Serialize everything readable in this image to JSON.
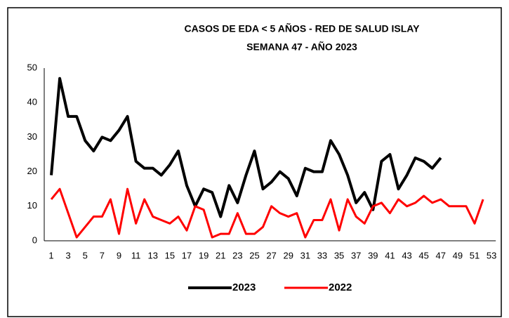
{
  "chart_data": {
    "type": "line",
    "title": "CASOS DE EDA < 5 AÑOS - RED DE SALUD ISLAY",
    "subtitle": "SEMANA  47 -  AÑO 2023",
    "categories": [
      "1",
      null,
      "3",
      null,
      "5",
      null,
      "7",
      null,
      "9",
      null,
      "11",
      null,
      "13",
      null,
      "15",
      null,
      "17",
      null,
      "19",
      null,
      "21",
      null,
      "23",
      null,
      "25",
      null,
      "27",
      null,
      "29",
      null,
      "31",
      null,
      "33",
      null,
      "35",
      null,
      "37",
      null,
      "39",
      null,
      "41",
      null,
      "43",
      null,
      "45",
      null,
      "47",
      null,
      "49",
      null,
      "51",
      null,
      "53"
    ],
    "series": [
      {
        "name": "2023",
        "color": "#000000",
        "values": [
          19,
          47,
          36,
          36,
          29,
          26,
          30,
          29,
          32,
          36,
          23,
          21,
          21,
          19,
          22,
          26,
          16,
          10,
          15,
          14,
          7,
          16,
          11,
          19,
          26,
          15,
          17,
          20,
          18,
          13,
          21,
          20,
          20,
          29,
          25,
          19,
          11,
          14,
          9,
          23,
          25,
          15,
          19,
          24,
          23,
          21,
          24,
          null,
          null,
          null,
          null,
          null,
          null
        ]
      },
      {
        "name": "2022",
        "color": "#ff0000",
        "values": [
          12,
          15,
          8,
          1,
          4,
          7,
          7,
          12,
          2,
          15,
          5,
          12,
          7,
          6,
          5,
          7,
          3,
          10,
          9,
          1,
          2,
          2,
          8,
          2,
          2,
          4,
          10,
          8,
          7,
          8,
          1,
          6,
          6,
          12,
          3,
          12,
          7,
          5,
          10,
          11,
          8,
          12,
          10,
          11,
          13,
          11,
          12,
          10,
          10,
          10,
          5,
          12,
          null
        ]
      }
    ],
    "ylim": [
      0,
      50
    ],
    "yticks": [
      0,
      10,
      20,
      30,
      40,
      50
    ],
    "grid": false,
    "legend": "bottom"
  }
}
